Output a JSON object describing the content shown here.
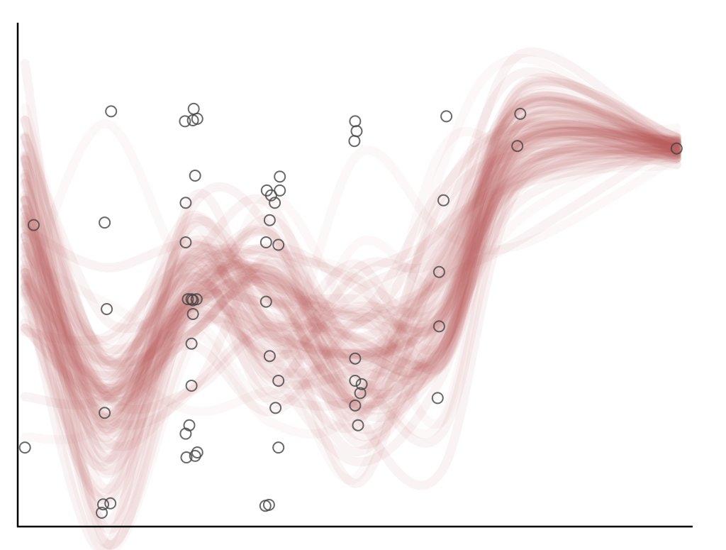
{
  "chart_data": {
    "type": "scatter",
    "title": "",
    "xlabel": "",
    "ylabel": "",
    "xlim": [
      -0.1,
      9.3
    ],
    "ylim": [
      0.4,
      10.45
    ],
    "grid": false,
    "legend": "none",
    "points": [
      [
        0.0,
        2.0
      ],
      [
        0.12,
        6.5
      ],
      [
        1.08,
        0.85
      ],
      [
        1.06,
        0.68
      ],
      [
        1.18,
        0.87
      ],
      [
        1.1,
        2.7
      ],
      [
        1.13,
        4.8
      ],
      [
        1.1,
        6.55
      ],
      [
        1.19,
        8.8
      ],
      [
        2.23,
        1.8
      ],
      [
        2.38,
        1.9
      ],
      [
        2.35,
        1.83
      ],
      [
        2.22,
        2.28
      ],
      [
        2.27,
        2.45
      ],
      [
        2.3,
        3.25
      ],
      [
        2.3,
        4.1
      ],
      [
        2.32,
        4.7
      ],
      [
        2.32,
        4.98
      ],
      [
        2.25,
        5.0
      ],
      [
        2.3,
        5.0
      ],
      [
        2.37,
        5.0
      ],
      [
        2.22,
        6.15
      ],
      [
        2.22,
        6.95
      ],
      [
        2.35,
        7.5
      ],
      [
        2.21,
        8.6
      ],
      [
        2.32,
        8.62
      ],
      [
        2.38,
        8.65
      ],
      [
        2.33,
        8.85
      ],
      [
        3.32,
        0.82
      ],
      [
        3.37,
        0.84
      ],
      [
        3.5,
        2.0
      ],
      [
        3.46,
        2.8
      ],
      [
        3.5,
        3.35
      ],
      [
        3.38,
        3.85
      ],
      [
        3.33,
        4.95
      ],
      [
        3.33,
        6.15
      ],
      [
        3.5,
        6.1
      ],
      [
        3.38,
        6.6
      ],
      [
        3.45,
        6.95
      ],
      [
        3.34,
        7.2
      ],
      [
        3.4,
        7.1
      ],
      [
        3.52,
        7.2
      ],
      [
        3.52,
        7.48
      ],
      [
        4.6,
        2.45
      ],
      [
        4.56,
        2.85
      ],
      [
        4.63,
        3.1
      ],
      [
        4.65,
        3.28
      ],
      [
        4.56,
        3.35
      ],
      [
        4.56,
        3.8
      ],
      [
        4.55,
        8.2
      ],
      [
        4.58,
        8.4
      ],
      [
        4.56,
        8.6
      ],
      [
        5.7,
        3.0
      ],
      [
        5.72,
        4.45
      ],
      [
        5.72,
        5.55
      ],
      [
        5.78,
        7.0
      ],
      [
        5.82,
        8.7
      ],
      [
        6.8,
        8.1
      ],
      [
        6.84,
        8.75
      ],
      [
        9.0,
        8.05
      ]
    ],
    "curve_anchor_x": [
      0.0,
      1.1,
      2.3,
      3.4,
      4.6,
      5.75,
      6.85,
      9.0
    ],
    "curves_mean": [
      6.5,
      2.7,
      5.0,
      4.8,
      3.8,
      4.9,
      8.3,
      8.05
    ],
    "curves_spread": [
      1.2,
      1.3,
      0.9,
      0.9,
      1.1,
      1.0,
      0.6,
      0.15
    ],
    "colors": {
      "marker_edge": "#444444",
      "curve": "#b85555",
      "axis": "#000000"
    }
  }
}
